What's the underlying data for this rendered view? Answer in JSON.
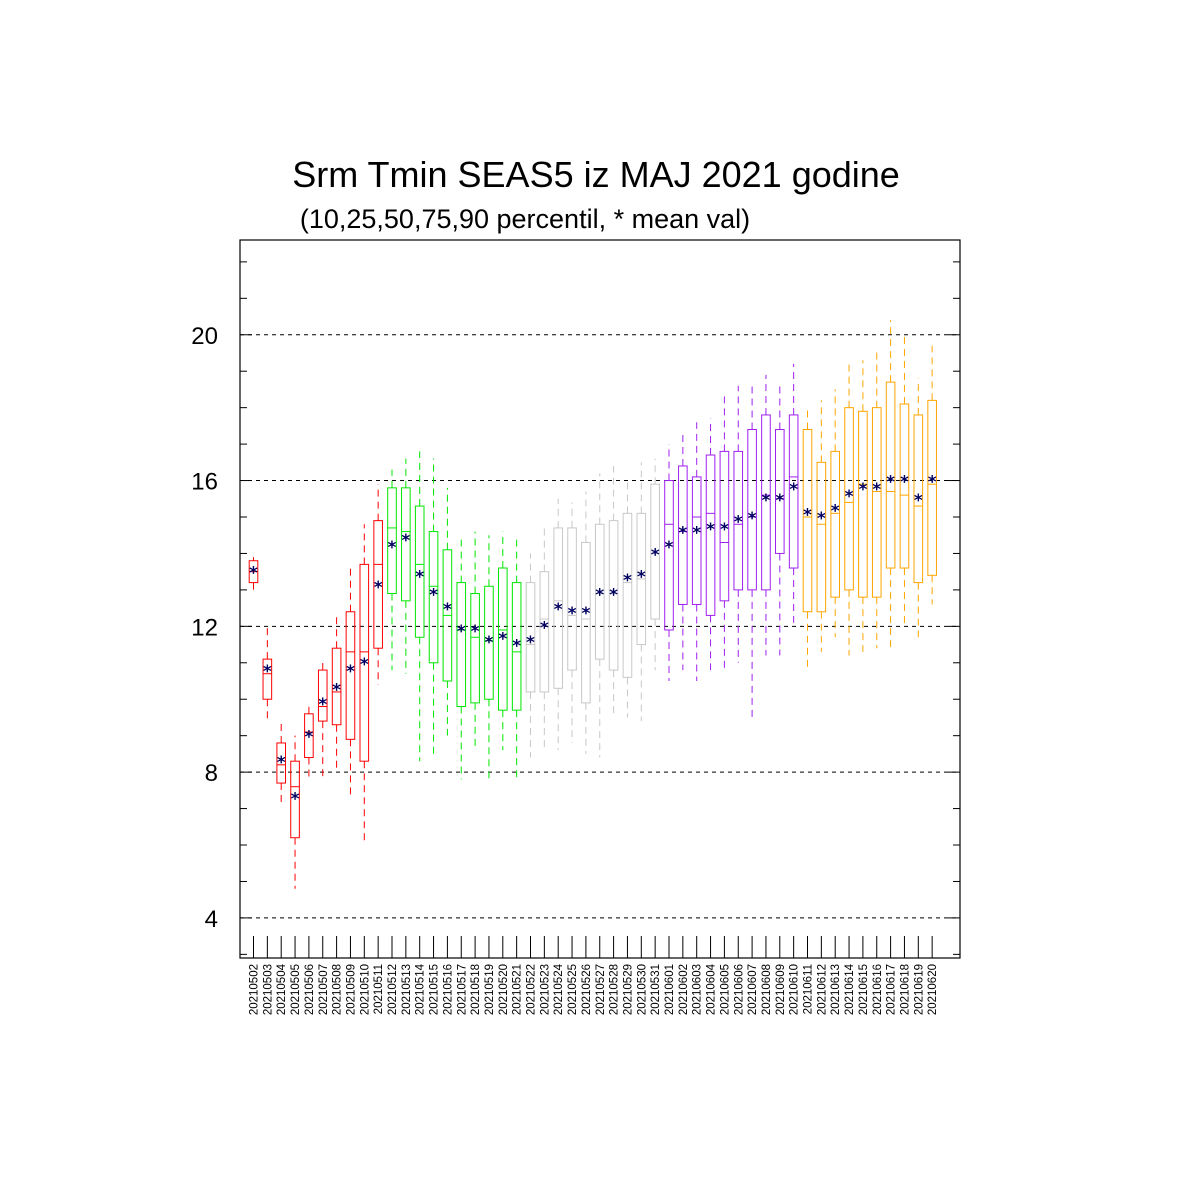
{
  "chart_data": {
    "type": "box",
    "title": "Srm Tmin SEAS5 iz MAJ 2021 godine",
    "subtitle": "(10,25,50,75,90 percentil, * mean val)",
    "xlabel": "",
    "ylabel": "",
    "ylim": [
      2.9,
      22.6
    ],
    "yticks": [
      4,
      8,
      12,
      16,
      20
    ],
    "ytick_labels": [
      "4",
      "8",
      "12",
      "16",
      "20"
    ],
    "grid": "horizontal dashed at major ticks",
    "mean_marker": "*",
    "colors": {
      "red": "#ff0000",
      "green": "#00e600",
      "grey": "#c8c8c8",
      "purple": "#a020f0",
      "orange": "#ffa500",
      "mean": "#000060",
      "grid": "#000000",
      "frame": "#000000"
    },
    "series": [
      {
        "color": "red",
        "categories": [
          "20210502",
          "20210503",
          "20210504",
          "20210505",
          "20210506",
          "20210507",
          "20210508",
          "20210509",
          "20210510",
          "20210511"
        ]
      },
      {
        "color": "green",
        "categories": [
          "20210512",
          "20210513",
          "20210514",
          "20210515",
          "20210516",
          "20210517",
          "20210518",
          "20210519",
          "20210520",
          "20210521"
        ]
      },
      {
        "color": "grey",
        "categories": [
          "20210522",
          "20210523",
          "20210524",
          "20210525",
          "20210526",
          "20210527",
          "20210528",
          "20210529",
          "20210530",
          "20210531"
        ]
      },
      {
        "color": "purple",
        "categories": [
          "20210601",
          "20210602",
          "20210603",
          "20210604",
          "20210605",
          "20210606",
          "20210607",
          "20210608",
          "20210609",
          "20210610"
        ]
      },
      {
        "color": "orange",
        "categories": [
          "20210611",
          "20210612",
          "20210613",
          "20210614",
          "20210615",
          "20210616",
          "20210617",
          "20210618",
          "20210619",
          "20210620"
        ]
      }
    ],
    "boxes": [
      {
        "date": "20210502",
        "p10": 13.0,
        "p25": 13.2,
        "p50": 13.5,
        "p75": 13.8,
        "p90": 13.9,
        "mean": 13.5
      },
      {
        "date": "20210503",
        "p10": 9.4,
        "p25": 10.0,
        "p50": 10.7,
        "p75": 11.1,
        "p90": 12.0,
        "mean": 10.8
      },
      {
        "date": "20210504",
        "p10": 7.1,
        "p25": 7.7,
        "p50": 8.2,
        "p75": 8.8,
        "p90": 9.4,
        "mean": 8.3
      },
      {
        "date": "20210505",
        "p10": 4.8,
        "p25": 6.2,
        "p50": 7.6,
        "p75": 8.3,
        "p90": 9.0,
        "mean": 7.3
      },
      {
        "date": "20210506",
        "p10": 7.8,
        "p25": 8.4,
        "p50": 9.1,
        "p75": 9.6,
        "p90": 9.8,
        "mean": 9.0
      },
      {
        "date": "20210507",
        "p10": 7.8,
        "p25": 9.4,
        "p50": 9.8,
        "p75": 10.8,
        "p90": 11.1,
        "mean": 9.9
      },
      {
        "date": "20210508",
        "p10": 8.0,
        "p25": 9.3,
        "p50": 10.2,
        "p75": 11.4,
        "p90": 12.3,
        "mean": 10.3
      },
      {
        "date": "20210509",
        "p10": 7.3,
        "p25": 8.9,
        "p50": 11.3,
        "p75": 12.4,
        "p90": 13.6,
        "mean": 10.8
      },
      {
        "date": "20210510",
        "p10": 6.1,
        "p25": 8.3,
        "p50": 11.3,
        "p75": 13.7,
        "p90": 14.8,
        "mean": 11.0
      },
      {
        "date": "20210511",
        "p10": 10.4,
        "p25": 11.4,
        "p50": 13.7,
        "p75": 14.9,
        "p90": 15.9,
        "mean": 13.1
      },
      {
        "date": "20210512",
        "p10": 10.8,
        "p25": 12.9,
        "p50": 14.7,
        "p75": 15.8,
        "p90": 16.3,
        "mean": 14.2
      },
      {
        "date": "20210513",
        "p10": 10.7,
        "p25": 12.7,
        "p50": 14.6,
        "p75": 15.8,
        "p90": 16.6,
        "mean": 14.4
      },
      {
        "date": "20210514",
        "p10": 8.3,
        "p25": 11.7,
        "p50": 13.7,
        "p75": 15.3,
        "p90": 16.8,
        "mean": 13.4
      },
      {
        "date": "20210515",
        "p10": 8.4,
        "p25": 11.0,
        "p50": 13.1,
        "p75": 14.6,
        "p90": 16.6,
        "mean": 12.9
      },
      {
        "date": "20210516",
        "p10": 9.0,
        "p25": 10.5,
        "p50": 12.3,
        "p75": 14.1,
        "p90": 15.8,
        "mean": 12.5
      },
      {
        "date": "20210517",
        "p10": 7.8,
        "p25": 9.8,
        "p50": 11.9,
        "p75": 13.2,
        "p90": 14.5,
        "mean": 11.9
      },
      {
        "date": "20210518",
        "p10": 8.7,
        "p25": 9.9,
        "p50": 11.7,
        "p75": 12.9,
        "p90": 14.6,
        "mean": 11.9
      },
      {
        "date": "20210519",
        "p10": 7.8,
        "p25": 10.0,
        "p50": 11.6,
        "p75": 13.1,
        "p90": 14.5,
        "mean": 11.6
      },
      {
        "date": "20210520",
        "p10": 8.6,
        "p25": 9.7,
        "p50": 11.9,
        "p75": 13.6,
        "p90": 14.6,
        "mean": 11.7
      },
      {
        "date": "20210521",
        "p10": 7.8,
        "p25": 9.7,
        "p50": 11.3,
        "p75": 13.2,
        "p90": 14.4,
        "mean": 11.5
      },
      {
        "date": "20210522",
        "p10": 8.4,
        "p25": 10.2,
        "p50": 11.5,
        "p75": 13.2,
        "p90": 14.0,
        "mean": 11.6
      },
      {
        "date": "20210523",
        "p10": 8.6,
        "p25": 10.2,
        "p50": 12.2,
        "p75": 13.5,
        "p90": 14.8,
        "mean": 12.0
      },
      {
        "date": "20210524",
        "p10": 8.6,
        "p25": 10.3,
        "p50": 12.7,
        "p75": 14.7,
        "p90": 15.5,
        "mean": 12.5
      },
      {
        "date": "20210525",
        "p10": 8.8,
        "p25": 10.8,
        "p50": 12.3,
        "p75": 14.7,
        "p90": 15.4,
        "mean": 12.4
      },
      {
        "date": "20210526",
        "p10": 8.5,
        "p25": 9.9,
        "p50": 12.2,
        "p75": 14.3,
        "p90": 15.7,
        "mean": 12.4
      },
      {
        "date": "20210527",
        "p10": 8.4,
        "p25": 11.1,
        "p50": 12.9,
        "p75": 14.8,
        "p90": 16.2,
        "mean": 12.9
      },
      {
        "date": "20210528",
        "p10": 9.6,
        "p25": 10.8,
        "p50": 12.9,
        "p75": 14.9,
        "p90": 16.4,
        "mean": 12.9
      },
      {
        "date": "20210529",
        "p10": 9.5,
        "p25": 10.6,
        "p50": 13.2,
        "p75": 15.1,
        "p90": 16.0,
        "mean": 13.3
      },
      {
        "date": "20210530",
        "p10": 9.4,
        "p25": 11.5,
        "p50": 13.3,
        "p75": 15.1,
        "p90": 16.5,
        "mean": 13.4
      },
      {
        "date": "20210531",
        "p10": 10.8,
        "p25": 12.2,
        "p50": 14.0,
        "p75": 15.9,
        "p90": 16.6,
        "mean": 14.0
      },
      {
        "date": "20210601",
        "p10": 10.5,
        "p25": 11.9,
        "p50": 14.8,
        "p75": 16.0,
        "p90": 17.0,
        "mean": 14.2
      },
      {
        "date": "20210602",
        "p10": 10.8,
        "p25": 12.6,
        "p50": 14.6,
        "p75": 16.4,
        "p90": 17.3,
        "mean": 14.6
      },
      {
        "date": "20210603",
        "p10": 10.5,
        "p25": 12.6,
        "p50": 15.0,
        "p75": 16.1,
        "p90": 17.6,
        "mean": 14.6
      },
      {
        "date": "20210604",
        "p10": 10.8,
        "p25": 12.3,
        "p50": 15.1,
        "p75": 16.7,
        "p90": 17.7,
        "mean": 14.7
      },
      {
        "date": "20210605",
        "p10": 10.8,
        "p25": 12.7,
        "p50": 14.3,
        "p75": 16.8,
        "p90": 18.4,
        "mean": 14.7
      },
      {
        "date": "20210606",
        "p10": 11.0,
        "p25": 13.0,
        "p50": 14.8,
        "p75": 16.8,
        "p90": 18.6,
        "mean": 14.9
      },
      {
        "date": "20210607",
        "p10": 9.4,
        "p25": 13.0,
        "p50": 15.0,
        "p75": 17.4,
        "p90": 18.7,
        "mean": 15.0
      },
      {
        "date": "20210608",
        "p10": 11.2,
        "p25": 13.0,
        "p50": 15.6,
        "p75": 17.8,
        "p90": 18.9,
        "mean": 15.5
      },
      {
        "date": "20210609",
        "p10": 11.2,
        "p25": 14.0,
        "p50": 15.5,
        "p75": 17.4,
        "p90": 18.7,
        "mean": 15.5
      },
      {
        "date": "20210610",
        "p10": 12.1,
        "p25": 13.6,
        "p50": 16.1,
        "p75": 17.8,
        "p90": 19.2,
        "mean": 15.8
      },
      {
        "date": "20210611",
        "p10": 10.8,
        "p25": 12.4,
        "p50": 15.0,
        "p75": 17.4,
        "p90": 18.0,
        "mean": 15.1
      },
      {
        "date": "20210612",
        "p10": 11.3,
        "p25": 12.4,
        "p50": 14.8,
        "p75": 16.5,
        "p90": 18.2,
        "mean": 15.0
      },
      {
        "date": "20210613",
        "p10": 11.7,
        "p25": 12.8,
        "p50": 15.1,
        "p75": 16.8,
        "p90": 18.5,
        "mean": 15.2
      },
      {
        "date": "20210614",
        "p10": 11.2,
        "p25": 13.0,
        "p50": 15.4,
        "p75": 18.0,
        "p90": 19.3,
        "mean": 15.6
      },
      {
        "date": "20210615",
        "p10": 11.3,
        "p25": 12.8,
        "p50": 15.9,
        "p75": 17.9,
        "p90": 19.3,
        "mean": 15.8
      },
      {
        "date": "20210616",
        "p10": 11.4,
        "p25": 12.8,
        "p50": 15.7,
        "p75": 18.0,
        "p90": 19.6,
        "mean": 15.8
      },
      {
        "date": "20210617",
        "p10": 11.4,
        "p25": 13.6,
        "p50": 15.7,
        "p75": 18.7,
        "p90": 20.4,
        "mean": 16.0
      },
      {
        "date": "20210618",
        "p10": 12.0,
        "p25": 13.6,
        "p50": 15.6,
        "p75": 18.1,
        "p90": 20.0,
        "mean": 16.0
      },
      {
        "date": "20210619",
        "p10": 11.7,
        "p25": 13.2,
        "p50": 15.3,
        "p75": 17.8,
        "p90": 18.8,
        "mean": 15.5
      },
      {
        "date": "20210620",
        "p10": 12.6,
        "p25": 13.4,
        "p50": 15.9,
        "p75": 18.2,
        "p90": 19.7,
        "mean": 16.0
      }
    ]
  }
}
